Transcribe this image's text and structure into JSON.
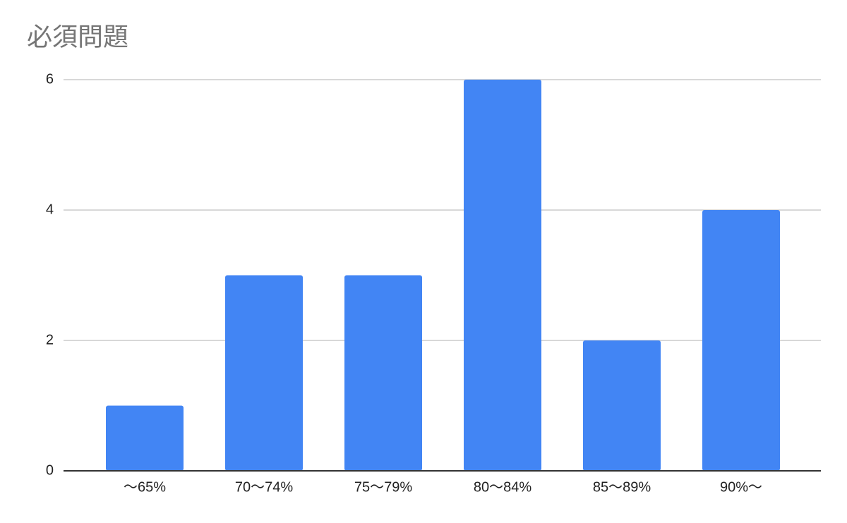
{
  "chart_data": {
    "type": "bar",
    "title": "必須問題",
    "categories": [
      "〜65%",
      "70〜74%",
      "75〜79%",
      "80〜84%",
      "85〜89%",
      "90%〜"
    ],
    "values": [
      1,
      3,
      3,
      6,
      2,
      4
    ],
    "color": "#4285f4",
    "ylim": [
      0,
      6
    ],
    "yticks": [
      0,
      2,
      4,
      6
    ],
    "grid": true
  }
}
